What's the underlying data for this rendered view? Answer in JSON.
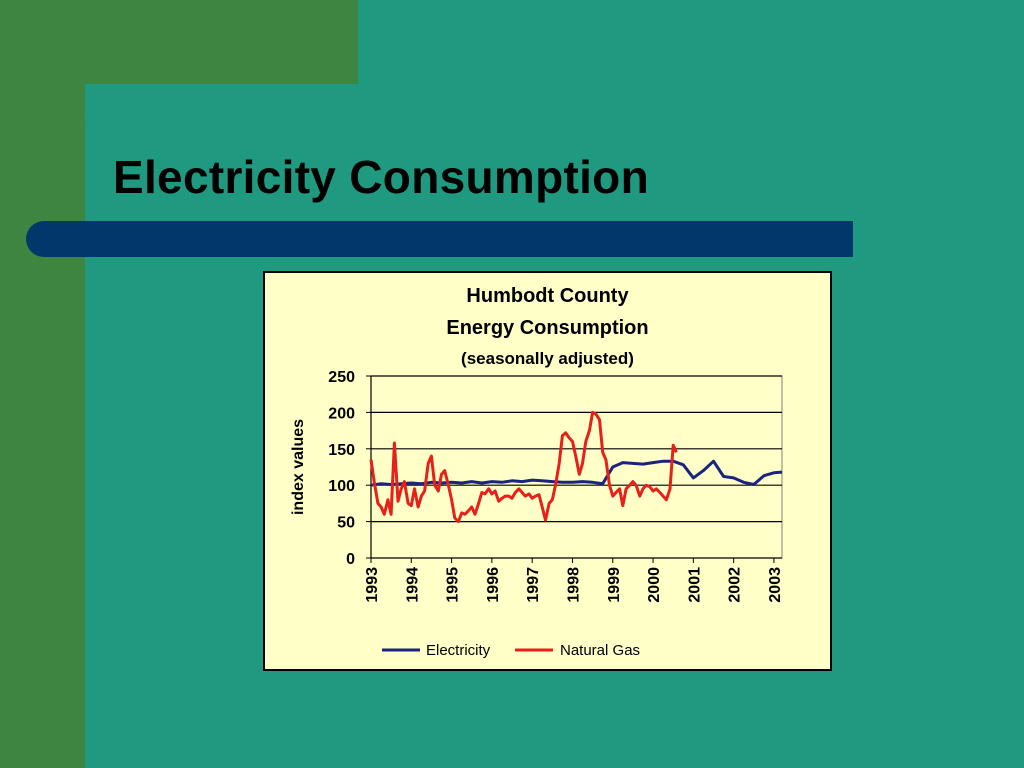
{
  "slide": {
    "title": "Electricity Consumption"
  },
  "colors": {
    "background": "#1f9980",
    "accent_green": "#3f8542",
    "title_bar": "#00386b",
    "chart_background": "#ffffc7",
    "electricity": "#1a237e",
    "natural_gas": "#e8201a"
  },
  "chart": {
    "title_line1": "Humbodt County",
    "title_line2": "Energy Consumption",
    "subtitle": "(seasonally adjusted)"
  },
  "chart_data": {
    "type": "line",
    "title": "Humbodt County Energy Consumption",
    "subtitle": "(seasonally adjusted)",
    "xlabel": "",
    "ylabel": "index values",
    "ylim": [
      0,
      250
    ],
    "xlim": [
      1993,
      2003.2
    ],
    "yticks": [
      0,
      50,
      100,
      150,
      200,
      250
    ],
    "xtick_labels": [
      "1993",
      "1994",
      "1995",
      "1996",
      "1997",
      "1998",
      "1999",
      "2000",
      "2001",
      "2002",
      "2003"
    ],
    "grid": "horizontal",
    "legend": "bottom",
    "series": [
      {
        "name": "Electricity",
        "color": "#1a237e",
        "points": [
          [
            1993.0,
            100
          ],
          [
            1993.25,
            102
          ],
          [
            1993.5,
            101
          ],
          [
            1993.75,
            102
          ],
          [
            1994.0,
            103
          ],
          [
            1994.25,
            102
          ],
          [
            1994.5,
            104
          ],
          [
            1994.75,
            103
          ],
          [
            1995.0,
            104
          ],
          [
            1995.25,
            103
          ],
          [
            1995.5,
            105
          ],
          [
            1995.75,
            103
          ],
          [
            1996.0,
            105
          ],
          [
            1996.25,
            104
          ],
          [
            1996.5,
            106
          ],
          [
            1996.75,
            105
          ],
          [
            1997.0,
            107
          ],
          [
            1997.25,
            106
          ],
          [
            1997.5,
            105
          ],
          [
            1997.75,
            104
          ],
          [
            1998.0,
            104
          ],
          [
            1998.25,
            105
          ],
          [
            1998.5,
            104
          ],
          [
            1998.75,
            102
          ],
          [
            1999.0,
            125
          ],
          [
            1999.25,
            131
          ],
          [
            1999.5,
            130
          ],
          [
            1999.75,
            129
          ],
          [
            2000.0,
            131
          ],
          [
            2000.25,
            133
          ],
          [
            2000.5,
            133
          ],
          [
            2000.75,
            128
          ],
          [
            2001.0,
            110
          ],
          [
            2001.25,
            120
          ],
          [
            2001.5,
            133
          ],
          [
            2001.75,
            112
          ],
          [
            2002.0,
            110
          ],
          [
            2002.25,
            104
          ],
          [
            2002.5,
            101
          ],
          [
            2002.75,
            113
          ],
          [
            2003.0,
            117
          ],
          [
            2003.2,
            118
          ]
        ]
      },
      {
        "name": "Natural Gas",
        "color": "#e8201a",
        "points": [
          [
            1993.0,
            135
          ],
          [
            1993.08,
            105
          ],
          [
            1993.17,
            75
          ],
          [
            1993.25,
            70
          ],
          [
            1993.33,
            60
          ],
          [
            1993.42,
            80
          ],
          [
            1993.5,
            60
          ],
          [
            1993.58,
            158
          ],
          [
            1993.67,
            78
          ],
          [
            1993.75,
            95
          ],
          [
            1993.83,
            105
          ],
          [
            1993.92,
            75
          ],
          [
            1994.0,
            72
          ],
          [
            1994.08,
            95
          ],
          [
            1994.17,
            70
          ],
          [
            1994.25,
            85
          ],
          [
            1994.33,
            92
          ],
          [
            1994.42,
            130
          ],
          [
            1994.5,
            140
          ],
          [
            1994.58,
            100
          ],
          [
            1994.67,
            92
          ],
          [
            1994.75,
            115
          ],
          [
            1994.83,
            120
          ],
          [
            1994.92,
            100
          ],
          [
            1995.0,
            80
          ],
          [
            1995.08,
            55
          ],
          [
            1995.17,
            50
          ],
          [
            1995.25,
            62
          ],
          [
            1995.33,
            60
          ],
          [
            1995.42,
            65
          ],
          [
            1995.5,
            70
          ],
          [
            1995.58,
            60
          ],
          [
            1995.67,
            75
          ],
          [
            1995.75,
            90
          ],
          [
            1995.83,
            88
          ],
          [
            1995.92,
            95
          ],
          [
            1996.0,
            88
          ],
          [
            1996.08,
            92
          ],
          [
            1996.17,
            78
          ],
          [
            1996.25,
            82
          ],
          [
            1996.33,
            85
          ],
          [
            1996.42,
            85
          ],
          [
            1996.5,
            82
          ],
          [
            1996.58,
            90
          ],
          [
            1996.67,
            95
          ],
          [
            1996.75,
            90
          ],
          [
            1996.83,
            85
          ],
          [
            1996.92,
            88
          ],
          [
            1997.0,
            82
          ],
          [
            1997.08,
            85
          ],
          [
            1997.17,
            87
          ],
          [
            1997.25,
            70
          ],
          [
            1997.33,
            52
          ],
          [
            1997.42,
            75
          ],
          [
            1997.5,
            80
          ],
          [
            1997.58,
            100
          ],
          [
            1997.67,
            130
          ],
          [
            1997.75,
            168
          ],
          [
            1997.83,
            172
          ],
          [
            1997.92,
            165
          ],
          [
            1998.0,
            160
          ],
          [
            1998.08,
            140
          ],
          [
            1998.17,
            115
          ],
          [
            1998.25,
            130
          ],
          [
            1998.33,
            160
          ],
          [
            1998.42,
            175
          ],
          [
            1998.5,
            200
          ],
          [
            1998.58,
            198
          ],
          [
            1998.67,
            190
          ],
          [
            1998.75,
            145
          ],
          [
            1998.83,
            135
          ],
          [
            1998.92,
            100
          ],
          [
            1999.0,
            85
          ],
          [
            1999.08,
            90
          ],
          [
            1999.17,
            95
          ],
          [
            1999.25,
            72
          ],
          [
            1999.33,
            95
          ],
          [
            1999.42,
            100
          ],
          [
            1999.5,
            105
          ],
          [
            1999.58,
            100
          ],
          [
            1999.67,
            85
          ],
          [
            1999.75,
            95
          ],
          [
            1999.83,
            100
          ],
          [
            1999.92,
            98
          ],
          [
            2000.0,
            92
          ],
          [
            2000.08,
            95
          ],
          [
            2000.17,
            90
          ],
          [
            2000.25,
            85
          ],
          [
            2000.33,
            80
          ],
          [
            2000.42,
            95
          ],
          [
            2000.5,
            155
          ],
          [
            2000.58,
            145
          ]
        ]
      }
    ]
  }
}
